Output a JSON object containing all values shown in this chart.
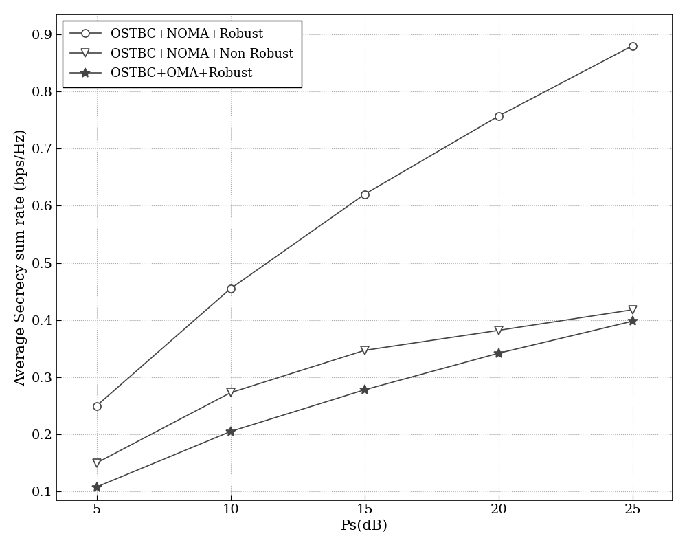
{
  "x": [
    5,
    10,
    15,
    20,
    25
  ],
  "series": [
    {
      "label": "OSTBC+NOMA+Robust",
      "y": [
        0.25,
        0.455,
        0.62,
        0.757,
        0.88
      ],
      "marker": "o",
      "color": "#444444",
      "markersize": 8,
      "linewidth": 1.2,
      "markerfacecolor": "white"
    },
    {
      "label": "OSTBC+NOMA+Non-Robust",
      "y": [
        0.15,
        0.273,
        0.347,
        0.382,
        0.418
      ],
      "marker": "v",
      "color": "#444444",
      "markersize": 8,
      "linewidth": 1.2,
      "markerfacecolor": "white"
    },
    {
      "label": "OSTBC+OMA+Robust",
      "y": [
        0.108,
        0.205,
        0.278,
        0.342,
        0.398
      ],
      "marker": "*",
      "color": "#444444",
      "markersize": 10,
      "linewidth": 1.2,
      "markerfacecolor": "#444444"
    }
  ],
  "xlabel": "Ps(dB)",
  "ylabel": "Average Secrecy sum rate (bps/Hz)",
  "xlim": [
    3.5,
    26.5
  ],
  "ylim": [
    0.085,
    0.935
  ],
  "xticks": [
    5,
    10,
    15,
    20,
    25
  ],
  "yticks": [
    0.1,
    0.2,
    0.3,
    0.4,
    0.5,
    0.6,
    0.7,
    0.8,
    0.9
  ],
  "grid": true,
  "legend_loc": "upper left",
  "background_color": "#ffffff",
  "tick_fontsize": 14,
  "label_fontsize": 15,
  "legend_fontsize": 13
}
